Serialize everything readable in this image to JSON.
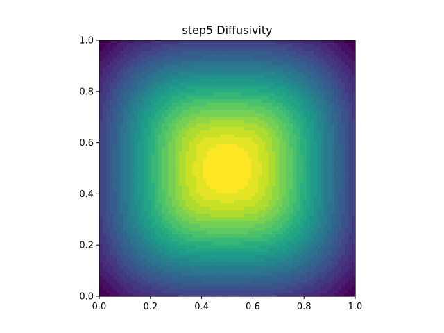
{
  "chart_data": {
    "type": "heatmap",
    "title": "step5 Diffusivity",
    "xlabel": "",
    "ylabel": "",
    "xlim": [
      0.0,
      1.0
    ],
    "ylim": [
      0.0,
      1.0
    ],
    "x_ticks": [
      0.0,
      0.2,
      0.4,
      0.6,
      0.8,
      1.0
    ],
    "y_ticks": [
      0.0,
      0.2,
      0.4,
      0.6,
      0.8,
      1.0
    ],
    "x_tick_labels": [
      "0.0",
      "0.2",
      "0.4",
      "0.6",
      "0.8",
      "1.0"
    ],
    "y_tick_labels": [
      "0.0",
      "0.2",
      "0.4",
      "0.6",
      "0.8",
      "1.0"
    ],
    "grid": false,
    "colormap": "viridis",
    "plot_style": "filled contour",
    "field": {
      "peak": [
        0.5,
        0.5
      ],
      "shape": "radially symmetric bump, maximum at centre, minimum at the square's boundary"
    }
  }
}
